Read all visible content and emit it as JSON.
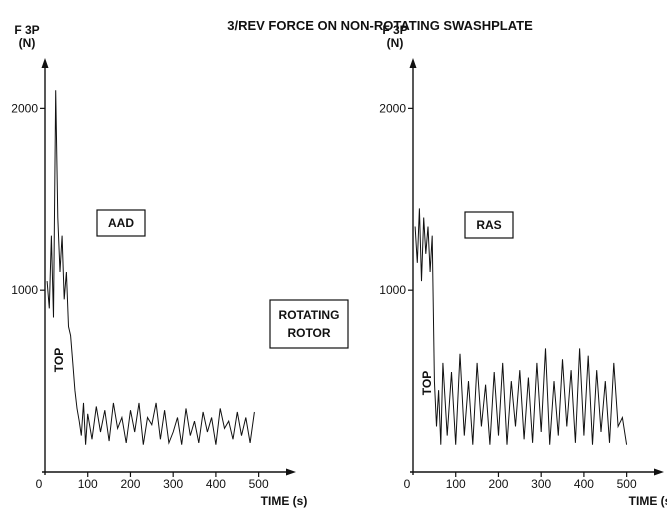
{
  "figure": {
    "title": "3/REV FORCE ON NON-ROTATING SWASHPLATE",
    "center_label_line1": "ROTATING",
    "center_label_line2": "ROTOR"
  },
  "chart_data": [
    {
      "type": "line",
      "panel_label": "AAD",
      "annotation": "TOP",
      "ylabel_line1": "F 3P",
      "ylabel_line2": "(N)",
      "xlabel": "TIME (s)",
      "xlim": [
        0,
        550
      ],
      "ylim": [
        0,
        2200
      ],
      "xticks": [
        0,
        100,
        200,
        300,
        400,
        500
      ],
      "xtick_labels": [
        "0",
        "100",
        "200",
        "300",
        "400",
        "500"
      ],
      "yticks": [
        1000,
        2000
      ],
      "ytick_labels": [
        "1000",
        "2000"
      ],
      "series": [
        {
          "x": [
            5,
            10,
            15,
            20,
            25,
            30,
            35,
            40,
            45,
            50,
            55,
            60,
            65,
            70,
            75,
            80,
            85,
            90,
            95,
            100,
            110,
            120,
            130,
            140,
            150,
            160,
            170,
            180,
            190,
            200,
            210,
            220,
            230,
            240,
            250,
            260,
            270,
            280,
            290,
            300,
            310,
            320,
            330,
            340,
            350,
            360,
            370,
            380,
            390,
            400,
            410,
            420,
            430,
            440,
            450,
            460,
            470,
            480,
            490
          ],
          "y": [
            1050,
            900,
            1300,
            850,
            2100,
            1400,
            1100,
            1300,
            950,
            1100,
            800,
            750,
            600,
            450,
            350,
            280,
            200,
            380,
            150,
            320,
            180,
            360,
            220,
            340,
            170,
            380,
            240,
            300,
            160,
            340,
            220,
            380,
            150,
            300,
            260,
            380,
            180,
            340,
            160,
            220,
            300,
            150,
            350,
            200,
            280,
            160,
            330,
            220,
            300,
            150,
            350,
            240,
            280,
            180,
            330,
            200,
            300,
            160,
            330
          ]
        }
      ]
    },
    {
      "type": "line",
      "panel_label": "RAS",
      "annotation": "TOP",
      "ylabel_line1": "F 3P",
      "ylabel_line2": "(N)",
      "xlabel": "TIME (s)",
      "xlim": [
        0,
        550
      ],
      "ylim": [
        0,
        2200
      ],
      "xticks": [
        0,
        100,
        200,
        300,
        400,
        500
      ],
      "xtick_labels": [
        "0",
        "100",
        "200",
        "300",
        "400",
        "500"
      ],
      "yticks": [
        1000,
        2000
      ],
      "ytick_labels": [
        "1000",
        "2000"
      ],
      "series": [
        {
          "x": [
            5,
            10,
            15,
            20,
            25,
            30,
            35,
            40,
            45,
            50,
            55,
            60,
            65,
            70,
            80,
            90,
            100,
            110,
            120,
            130,
            140,
            150,
            160,
            170,
            180,
            190,
            200,
            210,
            220,
            230,
            240,
            250,
            260,
            270,
            280,
            290,
            300,
            310,
            320,
            330,
            340,
            350,
            360,
            370,
            380,
            390,
            400,
            410,
            420,
            430,
            440,
            450,
            460,
            470,
            480,
            490,
            500
          ],
          "y": [
            1350,
            1150,
            1450,
            1050,
            1400,
            1200,
            1350,
            1100,
            1300,
            500,
            250,
            450,
            150,
            600,
            200,
            550,
            150,
            650,
            200,
            500,
            150,
            600,
            250,
            480,
            150,
            550,
            200,
            600,
            150,
            500,
            250,
            560,
            180,
            520,
            160,
            600,
            220,
            680,
            150,
            500,
            200,
            620,
            250,
            560,
            160,
            680,
            200,
            640,
            150,
            560,
            220,
            500,
            160,
            600,
            250,
            300,
            150
          ]
        }
      ]
    }
  ]
}
